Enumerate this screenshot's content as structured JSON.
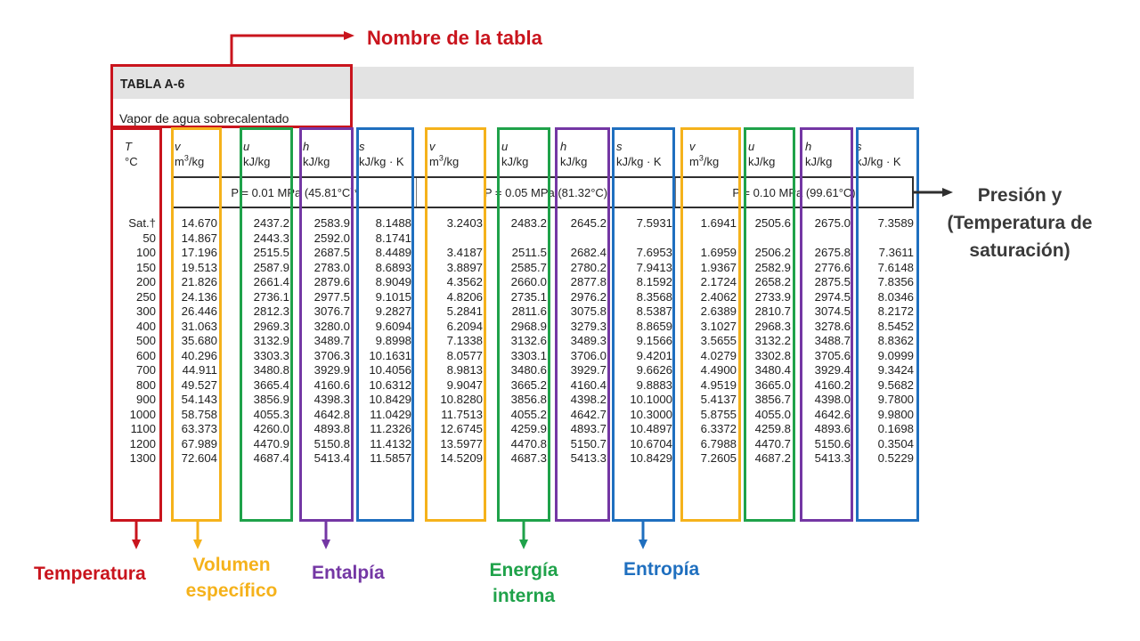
{
  "table": {
    "name": "TABLA A-6",
    "subtitle": "Vapor de agua sobrecalentado",
    "temp_header": {
      "symbol": "T",
      "unit": "°C"
    },
    "sections": [
      {
        "pressure_label": "P = 0.01 MPa (45.81°C)*",
        "columns": [
          {
            "symbol": "v",
            "unit_base": "m",
            "unit_sup": "3",
            "unit_tail": "/kg",
            "values": [
              "14.670",
              "14.867",
              "17.196",
              "19.513",
              "21.826",
              "24.136",
              "26.446",
              "31.063",
              "35.680",
              "40.296",
              "44.911",
              "49.527",
              "54.143",
              "58.758",
              "63.373",
              "67.989",
              "72.604"
            ]
          },
          {
            "symbol": "u",
            "unit": "kJ/kg",
            "values": [
              "2437.2",
              "2443.3",
              "2515.5",
              "2587.9",
              "2661.4",
              "2736.1",
              "2812.3",
              "2969.3",
              "3132.9",
              "3303.3",
              "3480.8",
              "3665.4",
              "3856.9",
              "4055.3",
              "4260.0",
              "4470.9",
              "4687.4"
            ]
          },
          {
            "symbol": "h",
            "unit": "kJ/kg",
            "values": [
              "2583.9",
              "2592.0",
              "2687.5",
              "2783.0",
              "2879.6",
              "2977.5",
              "3076.7",
              "3280.0",
              "3489.7",
              "3706.3",
              "3929.9",
              "4160.6",
              "4398.3",
              "4642.8",
              "4893.8",
              "5150.8",
              "5413.4"
            ]
          },
          {
            "symbol": "s",
            "unit": "kJ/kg · K",
            "values": [
              "8.1488",
              "8.1741",
              "8.4489",
              "8.6893",
              "8.9049",
              "9.1015",
              "9.2827",
              "9.6094",
              "9.8998",
              "10.1631",
              "10.4056",
              "10.6312",
              "10.8429",
              "11.0429",
              "11.2326",
              "11.4132",
              "11.5857"
            ]
          }
        ]
      },
      {
        "pressure_label": "P = 0.05 MPa (81.32°C)",
        "columns": [
          {
            "symbol": "v",
            "unit_base": "m",
            "unit_sup": "3",
            "unit_tail": "/kg",
            "values": [
              "3.2403",
              "",
              "3.4187",
              "3.8897",
              "4.3562",
              "4.8206",
              "5.2841",
              "6.2094",
              "7.1338",
              "8.0577",
              "8.9813",
              "9.9047",
              "10.8280",
              "11.7513",
              "12.6745",
              "13.5977",
              "14.5209"
            ]
          },
          {
            "symbol": "u",
            "unit": "kJ/kg",
            "values": [
              "2483.2",
              "",
              "2511.5",
              "2585.7",
              "2660.0",
              "2735.1",
              "2811.6",
              "2968.9",
              "3132.6",
              "3303.1",
              "3480.6",
              "3665.2",
              "3856.8",
              "4055.2",
              "4259.9",
              "4470.8",
              "4687.3"
            ]
          },
          {
            "symbol": "h",
            "unit": "kJ/kg",
            "values": [
              "2645.2",
              "",
              "2682.4",
              "2780.2",
              "2877.8",
              "2976.2",
              "3075.8",
              "3279.3",
              "3489.3",
              "3706.0",
              "3929.7",
              "4160.4",
              "4398.2",
              "4642.7",
              "4893.7",
              "5150.7",
              "5413.3"
            ]
          },
          {
            "symbol": "s",
            "unit": "kJ/kg · K",
            "values": [
              "7.5931",
              "",
              "7.6953",
              "7.9413",
              "8.1592",
              "8.3568",
              "8.5387",
              "8.8659",
              "9.1566",
              "9.4201",
              "9.6626",
              "9.8883",
              "10.1000",
              "10.3000",
              "10.4897",
              "10.6704",
              "10.8429"
            ]
          }
        ]
      },
      {
        "pressure_label": "P = 0.10 MPa (99.61°C)",
        "columns": [
          {
            "symbol": "v",
            "unit_base": "m",
            "unit_sup": "3",
            "unit_tail": "/kg",
            "values": [
              "1.6941",
              "",
              "1.6959",
              "1.9367",
              "2.1724",
              "2.4062",
              "2.6389",
              "3.1027",
              "3.5655",
              "4.0279",
              "4.4900",
              "4.9519",
              "5.4137",
              "5.8755",
              "6.3372",
              "6.7988",
              "7.2605"
            ]
          },
          {
            "symbol": "u",
            "unit": "kJ/kg",
            "values": [
              "2505.6",
              "",
              "2506.2",
              "2582.9",
              "2658.2",
              "2733.9",
              "2810.7",
              "2968.3",
              "3132.2",
              "3302.8",
              "3480.4",
              "3665.0",
              "3856.7",
              "4055.0",
              "4259.8",
              "4470.7",
              "4687.2"
            ]
          },
          {
            "symbol": "h",
            "unit": "kJ/kg",
            "values": [
              "2675.0",
              "",
              "2675.8",
              "2776.6",
              "2875.5",
              "2974.5",
              "3074.5",
              "3278.6",
              "3488.7",
              "3705.6",
              "3929.4",
              "4160.2",
              "4398.0",
              "4642.6",
              "4893.6",
              "5150.6",
              "5413.3"
            ]
          },
          {
            "symbol": "s",
            "unit": "kJ/kg · K",
            "values": [
              "7.3589",
              "",
              "7.3611",
              "7.6148",
              "7.8356",
              "8.0346",
              "8.2172",
              "8.5452",
              "8.8362",
              "9.0999",
              "9.3424",
              "9.5682",
              "9.7800",
              "9.9800",
              "0.1698",
              "0.3504",
              "0.5229"
            ]
          }
        ]
      }
    ],
    "temperatures": [
      "Sat.†",
      "50",
      "100",
      "150",
      "200",
      "250",
      "300",
      "400",
      "500",
      "600",
      "700",
      "800",
      "900",
      "1000",
      "1100",
      "1200",
      "1300"
    ]
  },
  "annotations": {
    "table_name": "Nombre de la tabla",
    "pressure": [
      "Presión y",
      "(Temperatura de",
      "saturación)"
    ],
    "temperature": "Temperatura",
    "volume": [
      "Volumen",
      "específico"
    ],
    "enthalpy": "Entalpía",
    "internal_energy": [
      "Energía",
      "interna"
    ],
    "entropy": "Entropía"
  },
  "colors": {
    "red": "#c9141d",
    "yellow": "#f5b21b",
    "green": "#1fa24a",
    "purple": "#7437a4",
    "blue": "#1f6fbf",
    "dark": "#2f2f2f"
  }
}
